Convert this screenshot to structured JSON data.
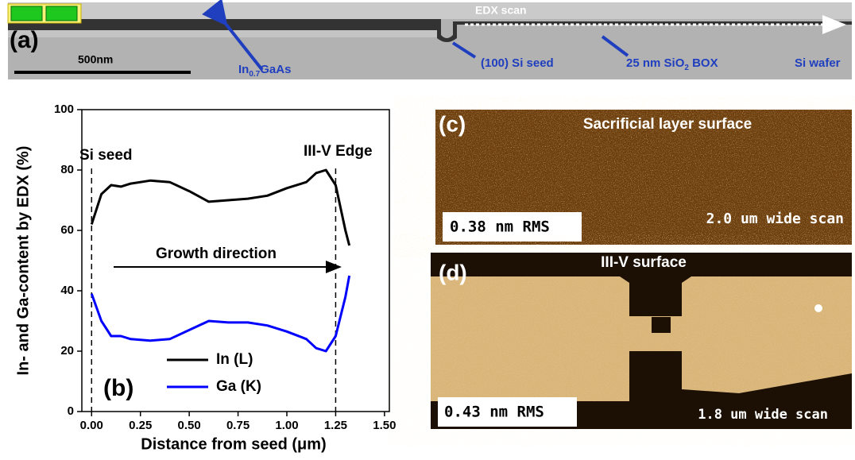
{
  "panel_a": {
    "label": "(a)",
    "scan": "EDX scan",
    "scale": "500nm",
    "layer": {
      "base": "In",
      "sub": "0.7",
      "rest": "GaAs"
    },
    "seed": "(100) Si seed",
    "box": {
      "base": "25 nm SiO",
      "sub": "2",
      "rest": " BOX"
    },
    "wafer": "Si wafer"
  },
  "panel_c": {
    "label": "(c)",
    "title": "Sacrificial layer surface",
    "rms": "0.38 nm RMS",
    "scan": "2.0 um wide scan"
  },
  "panel_d": {
    "label": "(d)",
    "title": "III-V surface",
    "rms": "0.43 nm RMS",
    "scan": "1.8 um wide scan"
  },
  "chart_data": {
    "type": "line",
    "label": "(b)",
    "xlabel": "Distance from seed (μm)",
    "ylabel": "In- and Ga-content by EDX (%)",
    "x": [
      0,
      0.05,
      0.1,
      0.15,
      0.2,
      0.3,
      0.4,
      0.5,
      0.6,
      0.7,
      0.8,
      0.9,
      1.0,
      1.1,
      1.15,
      1.2,
      1.25,
      1.3,
      1.32
    ],
    "series": [
      {
        "name": "In (L)",
        "color": "#000000",
        "values": [
          62,
          72,
          75,
          74.5,
          75.5,
          76.5,
          76,
          73,
          69.5,
          70,
          70.5,
          71.5,
          74,
          76,
          79,
          80,
          75,
          60,
          55
        ]
      },
      {
        "name": "Ga (K)",
        "color": "#0000ff",
        "values": [
          39,
          30,
          25,
          25,
          24,
          23.5,
          24,
          27,
          30,
          29.5,
          29.5,
          28.5,
          26.5,
          24,
          21,
          20,
          25,
          38,
          45
        ]
      }
    ],
    "xlim": [
      -0.05,
      1.525
    ],
    "ylim": [
      0,
      100
    ],
    "xticks": [
      {
        "value": 0,
        "label": "0.00"
      },
      {
        "value": 0.25,
        "label": "0.25"
      },
      {
        "value": 0.5,
        "label": "0.50"
      },
      {
        "value": 0.75,
        "label": "0.75"
      },
      {
        "value": 1.0,
        "label": "1.00"
      },
      {
        "value": 1.25,
        "label": "1.25"
      },
      {
        "value": 1.5,
        "label": "1.50"
      }
    ],
    "yticks": [
      0,
      20,
      40,
      60,
      80,
      100
    ],
    "vlines": [
      0,
      1.25
    ],
    "annotations": [
      "Si seed",
      "III-V Edge",
      "Growth direction"
    ],
    "legend": "lower left"
  }
}
